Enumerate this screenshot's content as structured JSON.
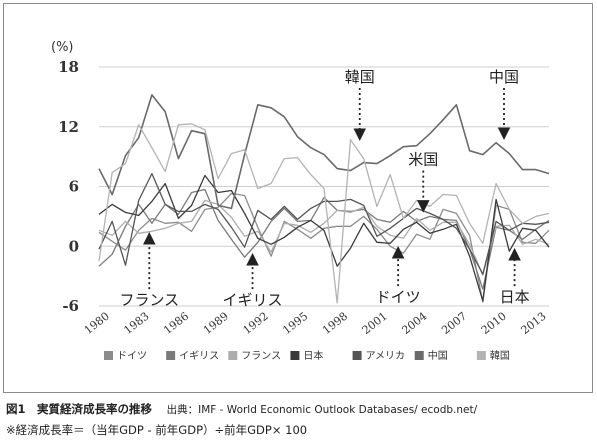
{
  "chart_data": {
    "type": "line",
    "title": "",
    "xlabel": "",
    "ylabel": "",
    "unit_label": "(%)",
    "ylim": [
      -6,
      18
    ],
    "yticks": [
      -6,
      0,
      6,
      12,
      18
    ],
    "xlim": [
      1980,
      2014
    ],
    "xticks": [
      1980,
      1983,
      1986,
      1989,
      1992,
      1995,
      1998,
      2001,
      2004,
      2007,
      2010,
      2013
    ],
    "grid": "horizontal",
    "legend_position": "bottom",
    "x": [
      1980,
      1981,
      1982,
      1983,
      1984,
      1985,
      1986,
      1987,
      1988,
      1989,
      1990,
      1991,
      1992,
      1993,
      1994,
      1995,
      1996,
      1997,
      1998,
      1999,
      2000,
      2001,
      2002,
      2003,
      2004,
      2005,
      2006,
      2007,
      2008,
      2009,
      2010,
      2011,
      2012,
      2013,
      2014
    ],
    "series": [
      {
        "name": "ドイツ",
        "color": "#8c8c8c",
        "width": 1.3,
        "values": [
          1.4,
          0.5,
          -0.4,
          1.6,
          2.8,
          2.3,
          2.4,
          1.5,
          3.7,
          3.9,
          5.3,
          5.1,
          1.9,
          -1.0,
          2.5,
          1.7,
          0.8,
          1.8,
          2.0,
          2.0,
          3.0,
          1.7,
          0.0,
          -0.7,
          1.2,
          0.7,
          3.7,
          3.3,
          1.1,
          -5.6,
          4.1,
          3.7,
          0.4,
          0.3,
          1.6
        ]
      },
      {
        "name": "イギリス",
        "color": "#7a7a7a",
        "width": 1.3,
        "values": [
          -2.0,
          -0.8,
          2.0,
          4.2,
          2.3,
          4.2,
          3.2,
          5.4,
          5.7,
          2.6,
          0.7,
          -1.1,
          0.4,
          2.5,
          3.8,
          2.5,
          2.6,
          4.9,
          3.6,
          3.5,
          3.7,
          2.7,
          2.4,
          3.5,
          2.5,
          3.0,
          2.7,
          2.6,
          -0.3,
          -4.3,
          1.9,
          1.6,
          0.7,
          1.7,
          2.6
        ]
      },
      {
        "name": "フランス",
        "color": "#adadad",
        "width": 1.3,
        "values": [
          1.6,
          1.1,
          2.5,
          1.3,
          1.5,
          1.8,
          2.3,
          2.5,
          4.6,
          4.2,
          2.9,
          1.0,
          1.5,
          -0.6,
          2.3,
          2.1,
          1.4,
          2.3,
          3.6,
          3.4,
          3.9,
          2.0,
          1.1,
          0.8,
          2.8,
          1.6,
          2.4,
          2.4,
          0.2,
          -2.9,
          2.0,
          2.1,
          0.2,
          0.7,
          0.2
        ]
      },
      {
        "name": "日本",
        "color": "#3a3a3a",
        "width": 1.3,
        "values": [
          3.2,
          4.2,
          3.4,
          3.1,
          4.5,
          6.3,
          2.8,
          4.1,
          7.1,
          5.4,
          5.6,
          3.3,
          0.8,
          0.2,
          0.9,
          1.9,
          2.6,
          1.6,
          -2.0,
          -0.2,
          2.3,
          0.4,
          0.3,
          1.7,
          2.4,
          1.3,
          1.7,
          2.2,
          -1.0,
          -5.5,
          4.7,
          -0.5,
          1.8,
          1.6,
          -0.1
        ]
      },
      {
        "name": "アメリカ",
        "color": "#555555",
        "width": 1.3,
        "values": [
          -0.3,
          2.5,
          -1.9,
          4.6,
          7.3,
          4.2,
          3.5,
          3.5,
          4.2,
          3.7,
          1.9,
          -0.1,
          3.6,
          2.7,
          4.0,
          2.7,
          3.8,
          4.5,
          4.5,
          4.7,
          4.1,
          1.0,
          1.8,
          2.8,
          3.8,
          3.3,
          2.7,
          1.8,
          -0.3,
          -2.8,
          2.5,
          1.6,
          2.3,
          2.2,
          2.4
        ]
      },
      {
        "name": "中国",
        "color": "#6a6a6a",
        "width": 1.6,
        "values": [
          7.8,
          5.2,
          9.1,
          10.9,
          15.2,
          13.5,
          8.8,
          11.6,
          11.3,
          4.1,
          3.8,
          9.2,
          14.2,
          13.9,
          13.0,
          11.0,
          9.9,
          9.2,
          7.8,
          7.6,
          8.4,
          8.3,
          9.1,
          10.0,
          10.1,
          11.3,
          12.7,
          14.2,
          9.6,
          9.2,
          10.4,
          9.3,
          7.7,
          7.7,
          7.3
        ]
      },
      {
        "name": "韓国",
        "color": "#b3b3b3",
        "width": 1.3,
        "values": [
          -1.5,
          7.4,
          8.3,
          12.2,
          9.9,
          7.5,
          12.2,
          12.3,
          11.7,
          6.8,
          9.3,
          9.7,
          5.8,
          6.3,
          8.8,
          8.9,
          7.2,
          5.8,
          -5.7,
          10.7,
          8.8,
          4.0,
          7.2,
          2.8,
          4.6,
          4.0,
          5.2,
          5.1,
          2.3,
          0.3,
          6.3,
          3.7,
          2.3,
          3.0,
          3.3
        ]
      }
    ],
    "annotations": [
      {
        "label": "韓国",
        "x": 1999.7,
        "y": 10.8,
        "label_y": 16.5,
        "direction": "down"
      },
      {
        "label": "中国",
        "x": 2010.6,
        "y": 10.9,
        "label_y": 16.5,
        "direction": "down"
      },
      {
        "label": "米国",
        "x": 2004.5,
        "y": 3.6,
        "label_y": 8.2,
        "direction": "down"
      },
      {
        "label": "フランス",
        "x": 1983.8,
        "y": 1.2,
        "label_y": -4.5,
        "direction": "up"
      },
      {
        "label": "イギリス",
        "x": 1991.6,
        "y": -0.9,
        "label_y": -4.5,
        "direction": "up"
      },
      {
        "label": "ドイツ",
        "x": 2002.6,
        "y": -0.2,
        "label_y": -4.2,
        "direction": "up"
      },
      {
        "label": "日本",
        "x": 2011.4,
        "y": -0.4,
        "label_y": -4.2,
        "direction": "up"
      }
    ]
  },
  "caption": {
    "figure_label": "図1　実質経済成長率の推移",
    "source": "出典：IMF - World Economic  Outlook Databases/ ecodb.net/",
    "formula": "※経済成長率＝（当年GDP - 前年GDP）÷前年GDP× 100"
  }
}
